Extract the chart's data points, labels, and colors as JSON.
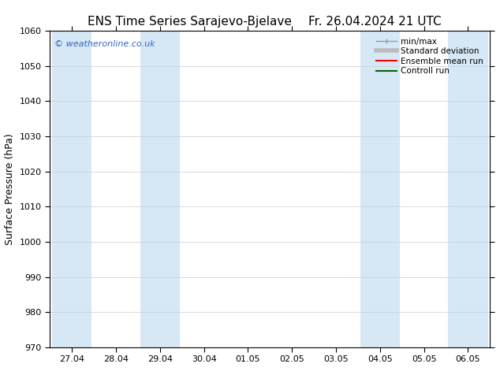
{
  "title1": "ENS Time Series Sarajevo-Bjelave",
  "title2": "Fr. 26.04.2024 21 UTC",
  "ylabel": "Surface Pressure (hPa)",
  "ylim": [
    970,
    1060
  ],
  "yticks": [
    970,
    980,
    990,
    1000,
    1010,
    1020,
    1030,
    1040,
    1050,
    1060
  ],
  "xtick_labels": [
    "27.04",
    "28.04",
    "29.04",
    "30.04",
    "01.05",
    "02.05",
    "03.05",
    "04.05",
    "05.05",
    "06.05"
  ],
  "background_color": "#ffffff",
  "plot_bg_color": "#ffffff",
  "shaded_band_color": "#d6e8f5",
  "watermark_text": "© weatheronline.co.uk",
  "watermark_color": "#3366bb",
  "legend_labels": [
    "min/max",
    "Standard deviation",
    "Ensemble mean run",
    "Controll run"
  ],
  "legend_colors": [
    "#999999",
    "#bbbbbb",
    "#ff0000",
    "#006600"
  ],
  "legend_lws": [
    1.0,
    4.0,
    1.5,
    1.5
  ],
  "title_fontsize": 11,
  "tick_fontsize": 8,
  "ylabel_fontsize": 9,
  "watermark_fontsize": 8,
  "shaded_day_indices": [
    0,
    2,
    7,
    9
  ],
  "half_band_days": 0.45
}
